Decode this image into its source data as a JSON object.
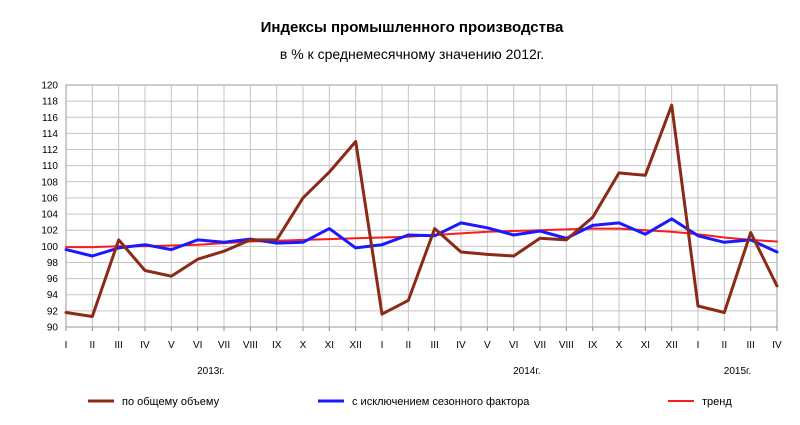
{
  "chart_data": {
    "type": "line",
    "title": "Индексы промышленного производства",
    "subtitle": "в % к среднемесячному значению 2012г.",
    "xlabel": "",
    "ylabel": "",
    "ylim": [
      90,
      120
    ],
    "y_ticks": [
      "90",
      "92",
      "94",
      "96",
      "98",
      "100",
      "102",
      "104",
      "106",
      "108",
      "110",
      "112",
      "114",
      "116",
      "118",
      "120"
    ],
    "categories": [
      "I",
      "II",
      "III",
      "IV",
      "V",
      "VI",
      "VII",
      "VIII",
      "IX",
      "X",
      "XI",
      "XII",
      "I",
      "II",
      "III",
      "IV",
      "V",
      "VI",
      "VII",
      "VIII",
      "IX",
      "X",
      "XI",
      "XII",
      "I",
      "II",
      "III",
      "IV"
    ],
    "year_labels": [
      {
        "label": "2013г.",
        "start_index": 0,
        "end_index": 11
      },
      {
        "label": "2014г.",
        "start_index": 12,
        "end_index": 23
      },
      {
        "label": "2015г.",
        "start_index": 24,
        "end_index": 27
      }
    ],
    "grid": true,
    "legend_position": "bottom",
    "series": [
      {
        "name": "по общему объему",
        "color": "#8b2a16",
        "values": [
          91.8,
          91.3,
          100.8,
          97.0,
          96.3,
          98.4,
          99.4,
          100.8,
          100.8,
          106.0,
          109.2,
          113.0,
          91.6,
          93.3,
          102.2,
          99.3,
          99.0,
          98.8,
          101.0,
          100.8,
          103.6,
          109.1,
          108.8,
          117.5,
          92.6,
          91.8,
          101.7,
          95.1
        ]
      },
      {
        "name": "с исключением сезонного фактора",
        "color": "#1a1aff",
        "values": [
          99.6,
          98.8,
          99.8,
          100.2,
          99.6,
          100.8,
          100.5,
          100.9,
          100.4,
          100.5,
          102.2,
          99.8,
          100.2,
          101.4,
          101.3,
          102.9,
          102.3,
          101.4,
          101.9,
          101.0,
          102.6,
          102.9,
          101.5,
          103.4,
          101.3,
          100.5,
          100.8,
          99.3
        ]
      },
      {
        "name": "тренд",
        "color": "#ff1a1a",
        "values": [
          99.9,
          99.9,
          100.0,
          100.0,
          100.1,
          100.2,
          100.4,
          100.6,
          100.7,
          100.8,
          100.9,
          101.0,
          101.1,
          101.2,
          101.4,
          101.6,
          101.8,
          101.9,
          102.0,
          102.1,
          102.2,
          102.2,
          102.0,
          101.8,
          101.5,
          101.1,
          100.8,
          100.6
        ]
      }
    ]
  }
}
